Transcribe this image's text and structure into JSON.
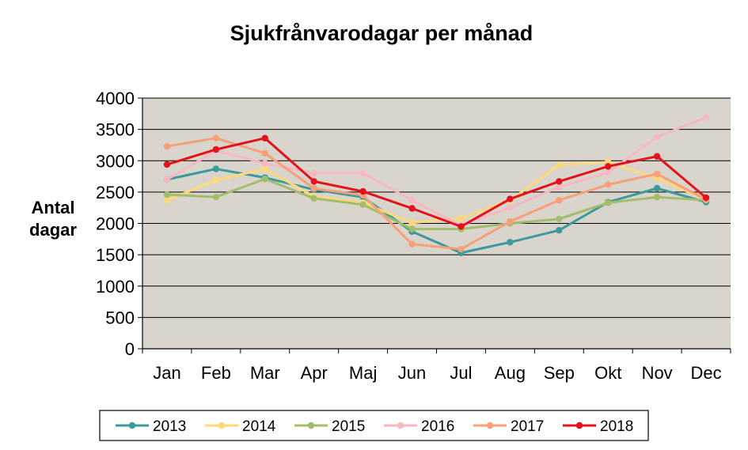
{
  "chart_data": {
    "type": "line",
    "title": "Sjukfrånvarodagar  per månad",
    "ylabel_lines": [
      "Antal",
      "dagar"
    ],
    "xlabel": "",
    "ylim": [
      0,
      4000
    ],
    "yticks": [
      0,
      500,
      1000,
      1500,
      2000,
      2500,
      3000,
      3500,
      4000
    ],
    "categories": [
      "Jan",
      "Feb",
      "Mar",
      "Apr",
      "Maj",
      "Jun",
      "Jul",
      "Aug",
      "Sep",
      "Okt",
      "Nov",
      "Dec"
    ],
    "grid": true,
    "legend_position": "bottom",
    "plot_background": "#d9d5cd",
    "series": [
      {
        "name": "2013",
        "color": "#3a9a9c",
        "values": [
          2700,
          2870,
          2730,
          2540,
          2420,
          1870,
          1530,
          1700,
          1890,
          2340,
          2560,
          2340
        ]
      },
      {
        "name": "2014",
        "color": "#ffd97a",
        "values": [
          2370,
          2690,
          2870,
          2430,
          2330,
          2010,
          2080,
          2370,
          2930,
          2980,
          2720,
          2380
        ]
      },
      {
        "name": "2015",
        "color": "#a4bd6a",
        "values": [
          2460,
          2420,
          2710,
          2400,
          2300,
          1910,
          1910,
          2000,
          2070,
          2330,
          2420,
          2370
        ]
      },
      {
        "name": "2016",
        "color": "#f7b8c4",
        "values": [
          2700,
          3160,
          2960,
          2800,
          2800,
          2370,
          1970,
          2250,
          2580,
          2810,
          3380,
          3690
        ]
      },
      {
        "name": "2017",
        "color": "#f7a07a",
        "values": [
          3230,
          3360,
          3120,
          2560,
          2450,
          1670,
          1590,
          2030,
          2370,
          2620,
          2790,
          2380
        ]
      },
      {
        "name": "2018",
        "color": "#e3131b",
        "values": [
          2940,
          3180,
          3360,
          2670,
          2510,
          2240,
          1950,
          2390,
          2670,
          2910,
          3070,
          2410
        ]
      }
    ]
  }
}
